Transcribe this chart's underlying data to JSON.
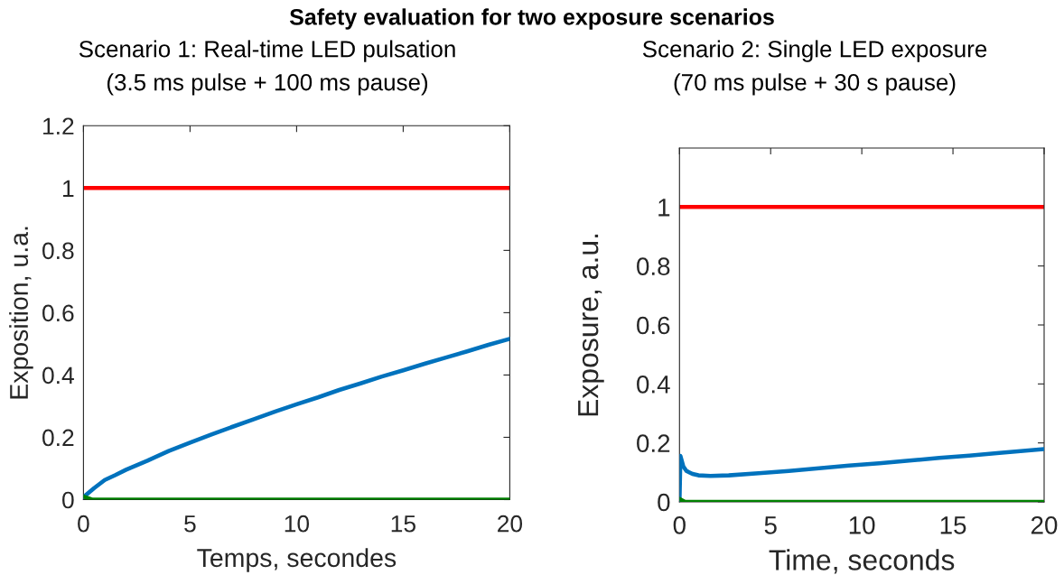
{
  "chart_data": [
    {
      "type": "line",
      "title": "Safety evaluation for two exposure scenarios",
      "subtitle": "Scenario 1: Real-time LED pulsation\n(3.5 ms pulse + 100 ms pause)",
      "xlabel": "Temps, secondes",
      "ylabel": "Exposition, u.a.",
      "xlim": [
        0,
        20
      ],
      "ylim": [
        0,
        1.2
      ],
      "xticks": [
        0,
        5,
        10,
        15,
        20
      ],
      "yticks": [
        0,
        0.2,
        0.4,
        0.6,
        0.8,
        1,
        1.2
      ],
      "ref_lines": [
        {
          "axis": "y",
          "value": 1,
          "color": "#ff0000"
        }
      ],
      "series": [
        {
          "color": "#0072bd",
          "x": [
            0,
            0.5,
            1,
            1.5,
            2,
            3,
            4,
            5,
            6,
            7,
            8,
            9,
            10,
            11,
            12,
            13,
            14,
            15,
            16,
            17,
            18,
            19,
            20
          ],
          "values": [
            0.008,
            0.037,
            0.063,
            0.079,
            0.096,
            0.125,
            0.156,
            0.183,
            0.209,
            0.234,
            0.258,
            0.283,
            0.306,
            0.328,
            0.352,
            0.373,
            0.395,
            0.415,
            0.436,
            0.456,
            0.476,
            0.497,
            0.516
          ]
        },
        {
          "color": "#008000",
          "x": [
            0,
            0.4,
            20
          ],
          "values": [
            0.01,
            0,
            0
          ]
        }
      ]
    },
    {
      "type": "line",
      "subtitle": "Scenario 2: Single LED exposure\n(70 ms pulse + 30 s pause)",
      "xlabel": "Time, seconds",
      "ylabel": "Exposure, a.u.",
      "xlim": [
        0,
        20
      ],
      "ylim": [
        0,
        1.2
      ],
      "xticks": [
        0,
        5,
        10,
        15,
        20
      ],
      "yticks": [
        0,
        0.2,
        0.4,
        0.6,
        0.8,
        1
      ],
      "ref_lines": [
        {
          "axis": "y",
          "value": 1,
          "color": "#ff0000"
        }
      ],
      "series": [
        {
          "color": "#0072bd",
          "x": [
            0,
            0.05,
            0.21,
            0.38,
            0.71,
            1.04,
            1.7,
            2.7,
            4.34,
            6,
            7.65,
            9.3,
            10.95,
            12.6,
            14.25,
            15.9,
            17.55,
            20
          ],
          "values": [
            0,
            0.156,
            0.12,
            0.105,
            0.095,
            0.09,
            0.088,
            0.09,
            0.097,
            0.105,
            0.114,
            0.123,
            0.131,
            0.14,
            0.149,
            0.157,
            0.166,
            0.179
          ]
        },
        {
          "color": "#008000",
          "x": [
            0,
            0.3,
            20
          ],
          "values": [
            0.01,
            0,
            0
          ]
        }
      ]
    }
  ]
}
